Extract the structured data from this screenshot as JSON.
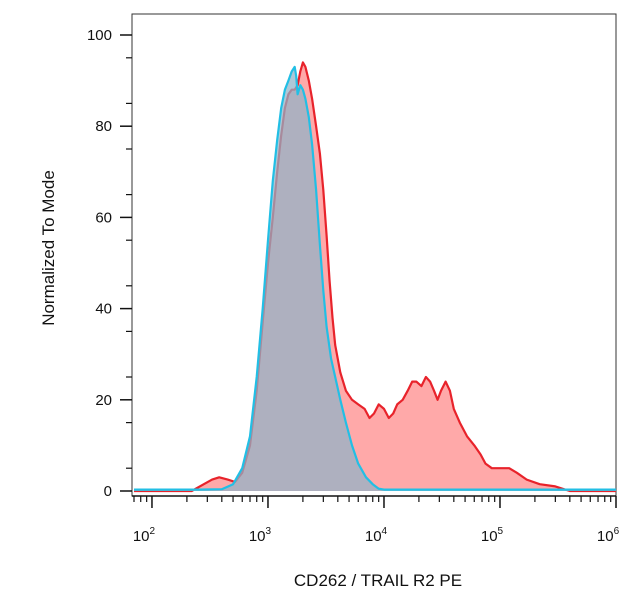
{
  "chart_data": {
    "type": "area",
    "title": "",
    "xlabel": "CD262 / TRAIL R2 PE",
    "ylabel": "Normalized To Mode",
    "x_scale": "log",
    "xlim": [
      70,
      1000000
    ],
    "ylim": [
      0,
      100
    ],
    "grid": false,
    "legend": "none",
    "y_ticks": [
      0,
      20,
      40,
      60,
      80,
      100
    ],
    "y_tick_labels": [
      "0",
      "20",
      "40",
      "60",
      "80",
      "100"
    ],
    "x_ticks": [
      100,
      1000,
      10000,
      100000,
      1000000
    ],
    "x_tick_labels": [
      {
        "base": "10",
        "exp": "2"
      },
      {
        "base": "10",
        "exp": "3"
      },
      {
        "base": "10",
        "exp": "4"
      },
      {
        "base": "10",
        "exp": "5"
      },
      {
        "base": "10",
        "exp": "6"
      }
    ],
    "series": [
      {
        "color": "#e8232b",
        "fill": "#ff8c8c",
        "points": [
          [
            70,
            0
          ],
          [
            150,
            0
          ],
          [
            220,
            0
          ],
          [
            280,
            1.5
          ],
          [
            330,
            2.5
          ],
          [
            380,
            3
          ],
          [
            450,
            2.5
          ],
          [
            520,
            2
          ],
          [
            600,
            4
          ],
          [
            700,
            10
          ],
          [
            800,
            22
          ],
          [
            900,
            37
          ],
          [
            1000,
            50
          ],
          [
            1100,
            60
          ],
          [
            1200,
            70
          ],
          [
            1300,
            78
          ],
          [
            1400,
            84
          ],
          [
            1500,
            87
          ],
          [
            1600,
            88
          ],
          [
            1700,
            88
          ],
          [
            1800,
            89
          ],
          [
            1900,
            92
          ],
          [
            2000,
            94
          ],
          [
            2100,
            93
          ],
          [
            2250,
            90
          ],
          [
            2400,
            86
          ],
          [
            2600,
            80
          ],
          [
            2800,
            74
          ],
          [
            3000,
            66
          ],
          [
            3200,
            56
          ],
          [
            3400,
            46
          ],
          [
            3600,
            38
          ],
          [
            3800,
            32
          ],
          [
            4200,
            26
          ],
          [
            4700,
            22
          ],
          [
            5300,
            20
          ],
          [
            6000,
            19
          ],
          [
            6800,
            18
          ],
          [
            7500,
            16
          ],
          [
            8200,
            17
          ],
          [
            9000,
            19
          ],
          [
            10000,
            18
          ],
          [
            11000,
            16
          ],
          [
            12000,
            17
          ],
          [
            13000,
            19
          ],
          [
            14500,
            20
          ],
          [
            16000,
            22
          ],
          [
            17500,
            24
          ],
          [
            19000,
            24
          ],
          [
            21000,
            23
          ],
          [
            23000,
            25
          ],
          [
            25000,
            24
          ],
          [
            27000,
            22
          ],
          [
            29000,
            20
          ],
          [
            31000,
            22
          ],
          [
            34000,
            24
          ],
          [
            37000,
            22
          ],
          [
            40000,
            18
          ],
          [
            45000,
            15
          ],
          [
            52000,
            12
          ],
          [
            60000,
            10
          ],
          [
            68000,
            8
          ],
          [
            75000,
            6
          ],
          [
            85000,
            5
          ],
          [
            100000,
            5
          ],
          [
            120000,
            5
          ],
          [
            140000,
            4
          ],
          [
            170000,
            2.5
          ],
          [
            220000,
            1.5
          ],
          [
            300000,
            1
          ],
          [
            400000,
            0
          ],
          [
            1000000,
            0
          ]
        ]
      },
      {
        "color": "#22bfe5",
        "fill": "#8fb3c8",
        "points": [
          [
            70,
            0.3
          ],
          [
            150,
            0.3
          ],
          [
            250,
            0.3
          ],
          [
            400,
            0.4
          ],
          [
            500,
            1.5
          ],
          [
            600,
            5
          ],
          [
            700,
            12
          ],
          [
            800,
            25
          ],
          [
            900,
            40
          ],
          [
            1000,
            55
          ],
          [
            1100,
            68
          ],
          [
            1200,
            77
          ],
          [
            1300,
            84
          ],
          [
            1400,
            88
          ],
          [
            1500,
            90
          ],
          [
            1600,
            92
          ],
          [
            1700,
            93
          ],
          [
            1750,
            91
          ],
          [
            1800,
            87
          ],
          [
            1900,
            89
          ],
          [
            2000,
            88
          ],
          [
            2100,
            86
          ],
          [
            2250,
            82
          ],
          [
            2400,
            76
          ],
          [
            2600,
            66
          ],
          [
            2800,
            54
          ],
          [
            3000,
            44
          ],
          [
            3200,
            36
          ],
          [
            3500,
            29
          ],
          [
            3800,
            25
          ],
          [
            4200,
            20
          ],
          [
            4700,
            15
          ],
          [
            5300,
            10
          ],
          [
            6000,
            6
          ],
          [
            7000,
            3
          ],
          [
            8000,
            1.5
          ],
          [
            9000,
            0.5
          ],
          [
            10000,
            0.3
          ],
          [
            30000,
            0.3
          ],
          [
            1000000,
            0.3
          ]
        ]
      }
    ]
  }
}
